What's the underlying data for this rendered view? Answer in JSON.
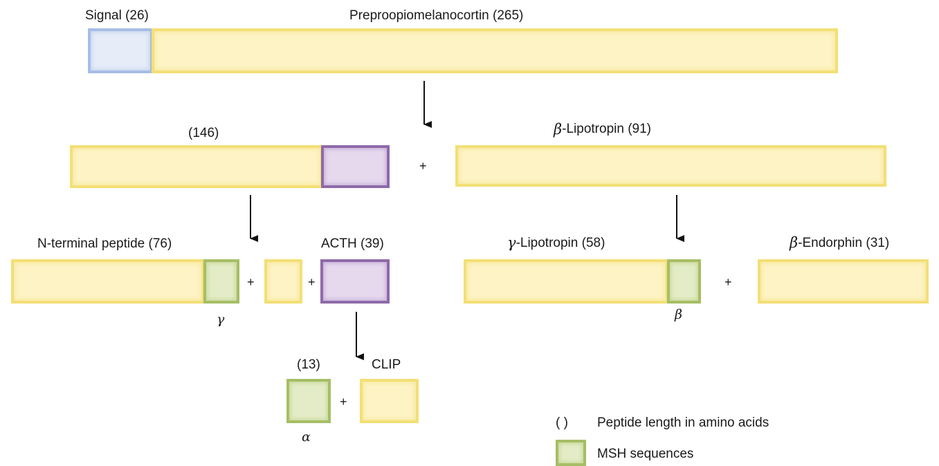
{
  "labels": {
    "signal": "Signal (26)",
    "prepro": "Preproopiomelanocortin (265)",
    "n146": "(146)",
    "beta_lph": "-Lipotropin (91)",
    "n_terminal": "N-terminal peptide (76)",
    "acth": "ACTH (39)",
    "gamma_lph": "-Lipotropin (58)",
    "beta_endorphin": "-Endorphin (31)",
    "n13": "(13)",
    "clip": "CLIP"
  },
  "greek": {
    "beta": "β",
    "gamma": "γ",
    "alpha": "α"
  },
  "plus": "+",
  "legend": {
    "paren_symbol": "(     )",
    "paren_text": "Peptide length in amino acids",
    "msh_text": "MSH sequences"
  },
  "colors": {
    "yellow": "#fdf3c4",
    "blue": "#e6ecf8",
    "purple": "#e6d9ee",
    "green": "#e3ecc7"
  }
}
